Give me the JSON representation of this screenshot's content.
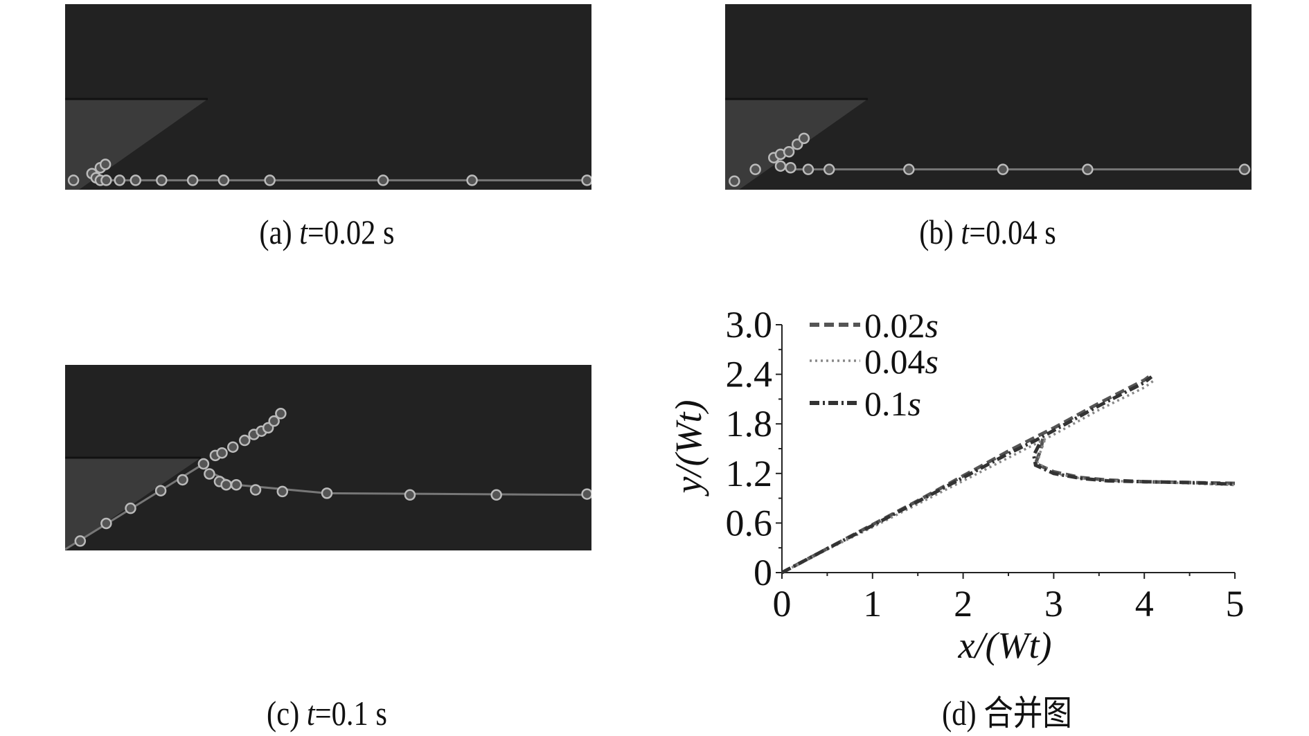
{
  "panels": [
    {
      "id": "a",
      "prefix": "(a) ",
      "var": "t",
      "value": "=0.02 s"
    },
    {
      "id": "b",
      "prefix": "(b) ",
      "var": "t",
      "value": "=0.04 s"
    },
    {
      "id": "c",
      "prefix": "(c) ",
      "var": "t",
      "value": "=0.1 s"
    }
  ],
  "chart_caption": "(d) 合并图",
  "chart_data": {
    "type": "line",
    "xlabel": "x/(Wt)",
    "ylabel": "y/(Wt)",
    "xlim": [
      0,
      5
    ],
    "ylim": [
      0,
      3.0
    ],
    "xticks": [
      "0",
      "1",
      "2",
      "3",
      "4",
      "5"
    ],
    "yticks": [
      "0",
      "0.6",
      "1.2",
      "1.8",
      "2.4",
      "3.0"
    ],
    "grid": false,
    "legend": "top-left",
    "series": [
      {
        "name": "0.02s",
        "num": "0.02",
        "unit": "s",
        "style": "dashed",
        "color": "#555555",
        "branches": [
          [
            [
              0,
              0
            ],
            [
              0.5,
              0.29
            ],
            [
              1,
              0.58
            ],
            [
              1.5,
              0.87
            ],
            [
              2,
              1.17
            ],
            [
              2.5,
              1.47
            ],
            [
              2.8,
              1.64
            ],
            [
              3,
              1.75
            ],
            [
              3.5,
              2.05
            ],
            [
              4,
              2.33
            ],
            [
              4.05,
              2.37
            ]
          ],
          [
            [
              2.88,
              1.62
            ],
            [
              2.86,
              1.5
            ],
            [
              2.8,
              1.32
            ],
            [
              3,
              1.22
            ],
            [
              3.3,
              1.15
            ],
            [
              3.6,
              1.12
            ],
            [
              4,
              1.1
            ],
            [
              4.5,
              1.09
            ],
            [
              5,
              1.08
            ]
          ]
        ]
      },
      {
        "name": "0.04s",
        "num": "0.04",
        "unit": "s",
        "style": "dotted",
        "color": "#888888",
        "branches": [
          [
            [
              0,
              0
            ],
            [
              0.5,
              0.28
            ],
            [
              1,
              0.55
            ],
            [
              1.5,
              0.83
            ],
            [
              2,
              1.11
            ],
            [
              2.5,
              1.39
            ],
            [
              3,
              1.67
            ],
            [
              3.5,
              1.97
            ],
            [
              4,
              2.24
            ],
            [
              4.1,
              2.32
            ]
          ],
          [
            [
              2.9,
              1.6
            ],
            [
              2.85,
              1.45
            ],
            [
              2.82,
              1.33
            ],
            [
              3,
              1.2
            ],
            [
              3.3,
              1.14
            ],
            [
              3.6,
              1.11
            ],
            [
              4,
              1.1
            ],
            [
              4.5,
              1.08
            ],
            [
              5,
              1.06
            ]
          ]
        ]
      },
      {
        "name": "0.1s",
        "num": "0.1",
        "unit": "s",
        "style": "dashdot",
        "color": "#333333",
        "branches": [
          [
            [
              0,
              0
            ],
            [
              0.5,
              0.29
            ],
            [
              1,
              0.57
            ],
            [
              1.5,
              0.86
            ],
            [
              2,
              1.15
            ],
            [
              2.5,
              1.44
            ],
            [
              2.8,
              1.6
            ],
            [
              3,
              1.72
            ],
            [
              3.5,
              2.02
            ],
            [
              4,
              2.3
            ],
            [
              4.08,
              2.37
            ]
          ],
          [
            [
              2.84,
              1.55
            ],
            [
              2.78,
              1.42
            ],
            [
              2.8,
              1.3
            ],
            [
              3,
              1.2
            ],
            [
              3.3,
              1.14
            ],
            [
              3.6,
              1.11
            ],
            [
              4,
              1.1
            ],
            [
              4.5,
              1.09
            ],
            [
              5,
              1.07
            ]
          ]
        ]
      }
    ]
  }
}
